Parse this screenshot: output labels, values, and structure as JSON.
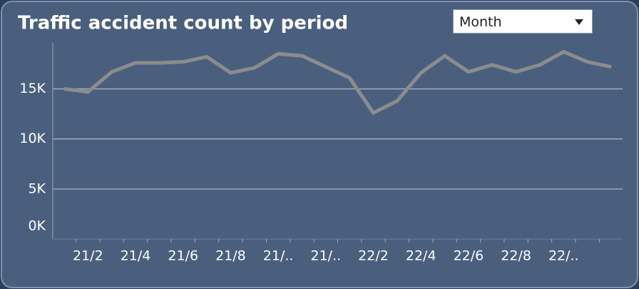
{
  "chart_data": {
    "type": "line",
    "title": "Traffic accident count by period",
    "categories": [
      null,
      "21/2",
      null,
      "21/4",
      null,
      "21/6",
      null,
      "21/8",
      null,
      "21/..",
      null,
      "21/..",
      null,
      "22/2",
      null,
      "22/4",
      null,
      "22/6",
      null,
      "22/8",
      null,
      "22/..",
      null,
      null
    ],
    "series": [
      {
        "name": "Traffic accident count",
        "color": "#8c8c8c",
        "values": [
          15000,
          14700,
          16700,
          17600,
          17600,
          17700,
          18200,
          16600,
          17100,
          18500,
          18300,
          17200,
          16100,
          12600,
          13800,
          16600,
          18300,
          16700,
          17400,
          16700,
          17400,
          18700,
          17700,
          17200
        ]
      }
    ],
    "ylim": [
      0,
      19600
    ],
    "yticks": [
      {
        "value": 0,
        "label": "0K"
      },
      {
        "value": 5000,
        "label": "5K"
      },
      {
        "value": 10000,
        "label": "10K"
      },
      {
        "value": 15000,
        "label": "15K"
      }
    ],
    "grid": true
  },
  "period_selector": {
    "selected": "Month"
  }
}
